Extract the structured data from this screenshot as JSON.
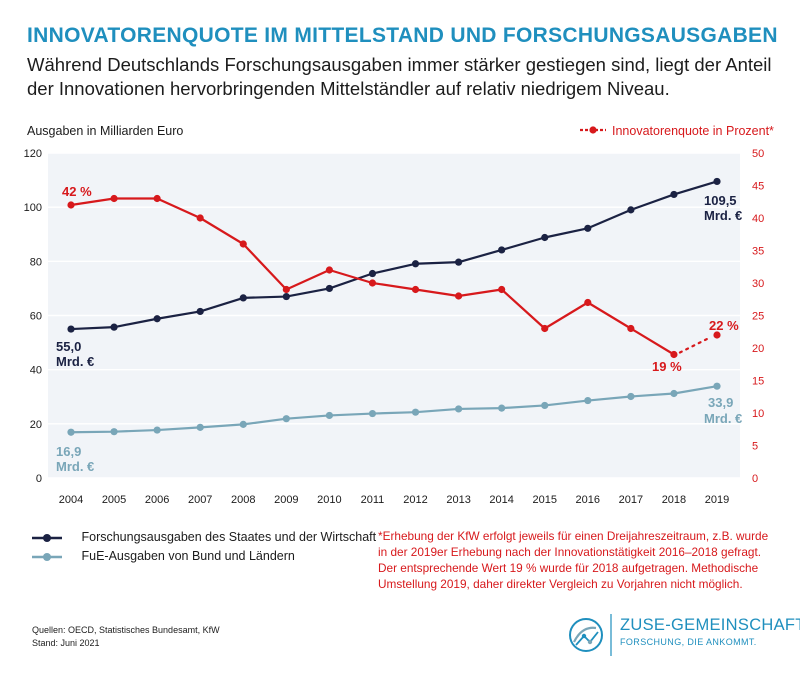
{
  "header": {
    "title": "INNOVATORENQUOTE IM MITTELSTAND UND FORSCHUNGSAUSGABEN",
    "subtitle": "Während Deutschlands Forschungsausgaben immer stärker gestiegen sind, liegt der Anteil der Innovationen hervorbringenden Mittelständler auf relativ niedrigem Niveau."
  },
  "colors": {
    "title": "#1f8fbe",
    "navy": "#1b2243",
    "lightblue": "#79a6b8",
    "red": "#d7191c",
    "grid": "#e6e6e6",
    "plot_bg": "#eef2f6"
  },
  "chart_data": {
    "type": "line",
    "x": [
      2004,
      2005,
      2006,
      2007,
      2008,
      2009,
      2010,
      2011,
      2012,
      2013,
      2014,
      2015,
      2016,
      2017,
      2018,
      2019
    ],
    "left_axis": {
      "label": "Ausgaben in Milliarden Euro",
      "range": [
        0,
        120
      ],
      "ticks": [
        0,
        20,
        40,
        60,
        80,
        100,
        120
      ]
    },
    "right_axis": {
      "label": "Innovatorenquote in Prozent*",
      "range": [
        0,
        50
      ],
      "ticks": [
        0,
        5,
        10,
        15,
        20,
        25,
        30,
        35,
        40,
        45,
        50
      ]
    },
    "series": [
      {
        "name": "Forschungsausgaben des Staates und der Wirtschaft",
        "axis": "left",
        "color": "#1b2243",
        "values": [
          55.0,
          55.7,
          58.8,
          61.5,
          66.5,
          67.0,
          70.0,
          75.5,
          79.1,
          79.7,
          84.2,
          88.8,
          92.2,
          99.0,
          104.7,
          109.5
        ]
      },
      {
        "name": "FuE-Ausgaben von Bund und Ländern",
        "axis": "left",
        "color": "#79a6b8",
        "values": [
          16.9,
          17.1,
          17.7,
          18.7,
          19.8,
          21.9,
          23.1,
          23.8,
          24.3,
          25.5,
          25.8,
          26.8,
          28.6,
          30.1,
          31.2,
          33.9
        ]
      },
      {
        "name": "Innovatorenquote in Prozent*",
        "axis": "right",
        "color": "#d7191c",
        "values": [
          42,
          43,
          43,
          40,
          36,
          29,
          32,
          30,
          29,
          28,
          29,
          23,
          27,
          23,
          19,
          null
        ],
        "dotted_extension": {
          "from": 2018,
          "to": 2019,
          "from_value": 19,
          "to_value": 22
        },
        "point_2019": 22
      }
    ],
    "annotations": {
      "red_first": "42 %",
      "red_2018": "19 %",
      "red_2019": "22 %",
      "navy_first_value": "55,0",
      "navy_first_unit": "Mrd. €",
      "navy_last_value": "109,5",
      "navy_last_unit": "Mrd. €",
      "blue_first_value": "16,9",
      "blue_first_unit": "Mrd. €",
      "blue_last_value": "33,9",
      "blue_last_unit": "Mrd. €"
    }
  },
  "legend": {
    "navy_label": "Forschungsausgaben des Staates und der Wirtschaft",
    "blue_label": "FuE-Ausgaben von Bund und Ländern"
  },
  "footnote": "*Erhebung der KfW erfolgt jeweils für einen Dreijahreszeitraum, z.B. wurde in der 2019er Erhebung nach der Innovationstätigkeit 2016–2018 gefragt. Der entsprechende Wert 19 % wurde für 2018 aufgetragen. Methodische Umstellung 2019, daher direkter Vergleich zu Vorjahren nicht möglich.",
  "sources": {
    "line1": "Quellen: OECD, Statistisches Bundesamt, KfW",
    "line2": "Stand: Juni 2021"
  },
  "logo": {
    "name": "ZUSE-GEMEINSCHAFT",
    "claim": "FORSCHUNG, DIE ANKOMMT."
  }
}
